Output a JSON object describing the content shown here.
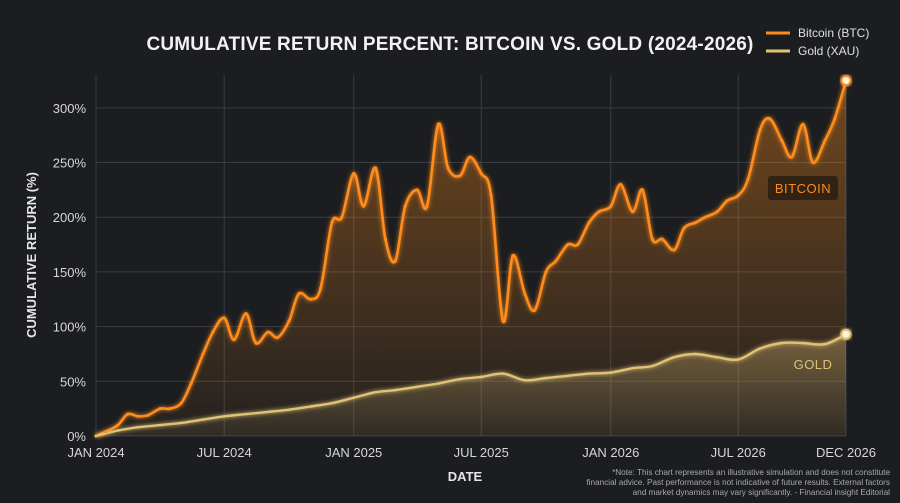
{
  "chart_data": {
    "type": "line",
    "title": "CUMULATIVE RETURN PERCENT: BITCOIN VS. GOLD (2024-2026)",
    "xlabel": "DATE",
    "ylabel": "CUMULATIVE RETURN (%)",
    "ylim": [
      0,
      330
    ],
    "xlim": [
      "2024-01",
      "2026-12"
    ],
    "grid": true,
    "legend_position": "top-right",
    "x_ticks": [
      "JAN 2024",
      "JUL 2024",
      "JAN 2025",
      "JUL 2025",
      "JAN 2026",
      "JUL 2026",
      "DEC 2026"
    ],
    "y_ticks": [
      "0%",
      "50%",
      "100%",
      "150%",
      "200%",
      "250%",
      "300%"
    ],
    "y_tick_values": [
      0,
      50,
      100,
      150,
      200,
      250,
      300
    ],
    "series": [
      {
        "name": "Bitcoin (BTC)",
        "inline_label": "BITCOIN",
        "color": "#ff8c1a",
        "x": [
          "2024-01-01",
          "2024-01-15",
          "2024-02-01",
          "2024-02-15",
          "2024-03-01",
          "2024-03-15",
          "2024-04-01",
          "2024-04-15",
          "2024-05-01",
          "2024-05-15",
          "2024-06-01",
          "2024-06-15",
          "2024-07-01",
          "2024-07-15",
          "2024-08-01",
          "2024-08-15",
          "2024-09-01",
          "2024-09-15",
          "2024-10-01",
          "2024-10-15",
          "2024-11-01",
          "2024-11-15",
          "2024-12-01",
          "2024-12-15",
          "2025-01-01",
          "2025-01-15",
          "2025-02-01",
          "2025-02-15",
          "2025-03-01",
          "2025-03-15",
          "2025-04-01",
          "2025-04-15",
          "2025-05-01",
          "2025-05-15",
          "2025-06-01",
          "2025-06-15",
          "2025-07-01",
          "2025-07-15",
          "2025-08-01",
          "2025-08-15",
          "2025-09-01",
          "2025-09-15",
          "2025-10-01",
          "2025-10-15",
          "2025-11-01",
          "2025-11-15",
          "2025-12-01",
          "2025-12-15",
          "2026-01-01",
          "2026-01-15",
          "2026-02-01",
          "2026-02-15",
          "2026-03-01",
          "2026-03-15",
          "2026-04-01",
          "2026-04-15",
          "2026-05-01",
          "2026-05-15",
          "2026-06-01",
          "2026-06-15",
          "2026-07-01",
          "2026-07-15",
          "2026-08-01",
          "2026-08-15",
          "2026-09-01",
          "2026-09-15",
          "2026-10-01",
          "2026-10-15",
          "2026-11-01",
          "2026-11-15",
          "2026-12-01"
        ],
        "values": [
          0,
          4,
          10,
          20,
          18,
          19,
          25,
          25,
          30,
          48,
          75,
          95,
          108,
          88,
          112,
          85,
          95,
          90,
          105,
          130,
          125,
          135,
          195,
          200,
          240,
          210,
          245,
          180,
          160,
          210,
          225,
          210,
          285,
          245,
          238,
          255,
          240,
          220,
          105,
          165,
          130,
          115,
          150,
          160,
          175,
          175,
          195,
          205,
          210,
          230,
          205,
          225,
          180,
          180,
          170,
          190,
          195,
          200,
          205,
          215,
          220,
          235,
          280,
          290,
          270,
          255,
          285,
          250,
          270,
          290,
          325
        ]
      },
      {
        "name": "Gold (XAU)",
        "inline_label": "GOLD",
        "color": "#e0c275",
        "x": [
          "2024-01-01",
          "2024-02-01",
          "2024-03-01",
          "2024-04-01",
          "2024-05-01",
          "2024-06-01",
          "2024-07-01",
          "2024-08-01",
          "2024-09-01",
          "2024-10-01",
          "2024-11-01",
          "2024-12-01",
          "2025-01-01",
          "2025-02-01",
          "2025-03-01",
          "2025-04-01",
          "2025-05-01",
          "2025-06-01",
          "2025-07-01",
          "2025-08-01",
          "2025-09-01",
          "2025-10-01",
          "2025-11-01",
          "2025-12-01",
          "2026-01-01",
          "2026-02-01",
          "2026-03-01",
          "2026-04-01",
          "2026-05-01",
          "2026-06-01",
          "2026-07-01",
          "2026-08-01",
          "2026-09-01",
          "2026-10-01",
          "2026-11-01",
          "2026-12-01"
        ],
        "values": [
          0,
          5,
          8,
          10,
          12,
          15,
          18,
          20,
          22,
          24,
          27,
          30,
          35,
          40,
          42,
          45,
          48,
          52,
          54,
          57,
          51,
          53,
          55,
          57,
          58,
          62,
          64,
          72,
          75,
          72,
          70,
          80,
          85,
          85,
          84,
          93
        ]
      }
    ],
    "footnote": "*Note: This chart represents an illustrative simulation and does not constitute financial advice. Past performance is not indicative of future results. External factors and market dynamics may vary significantly. - Financial insight Editorial"
  }
}
